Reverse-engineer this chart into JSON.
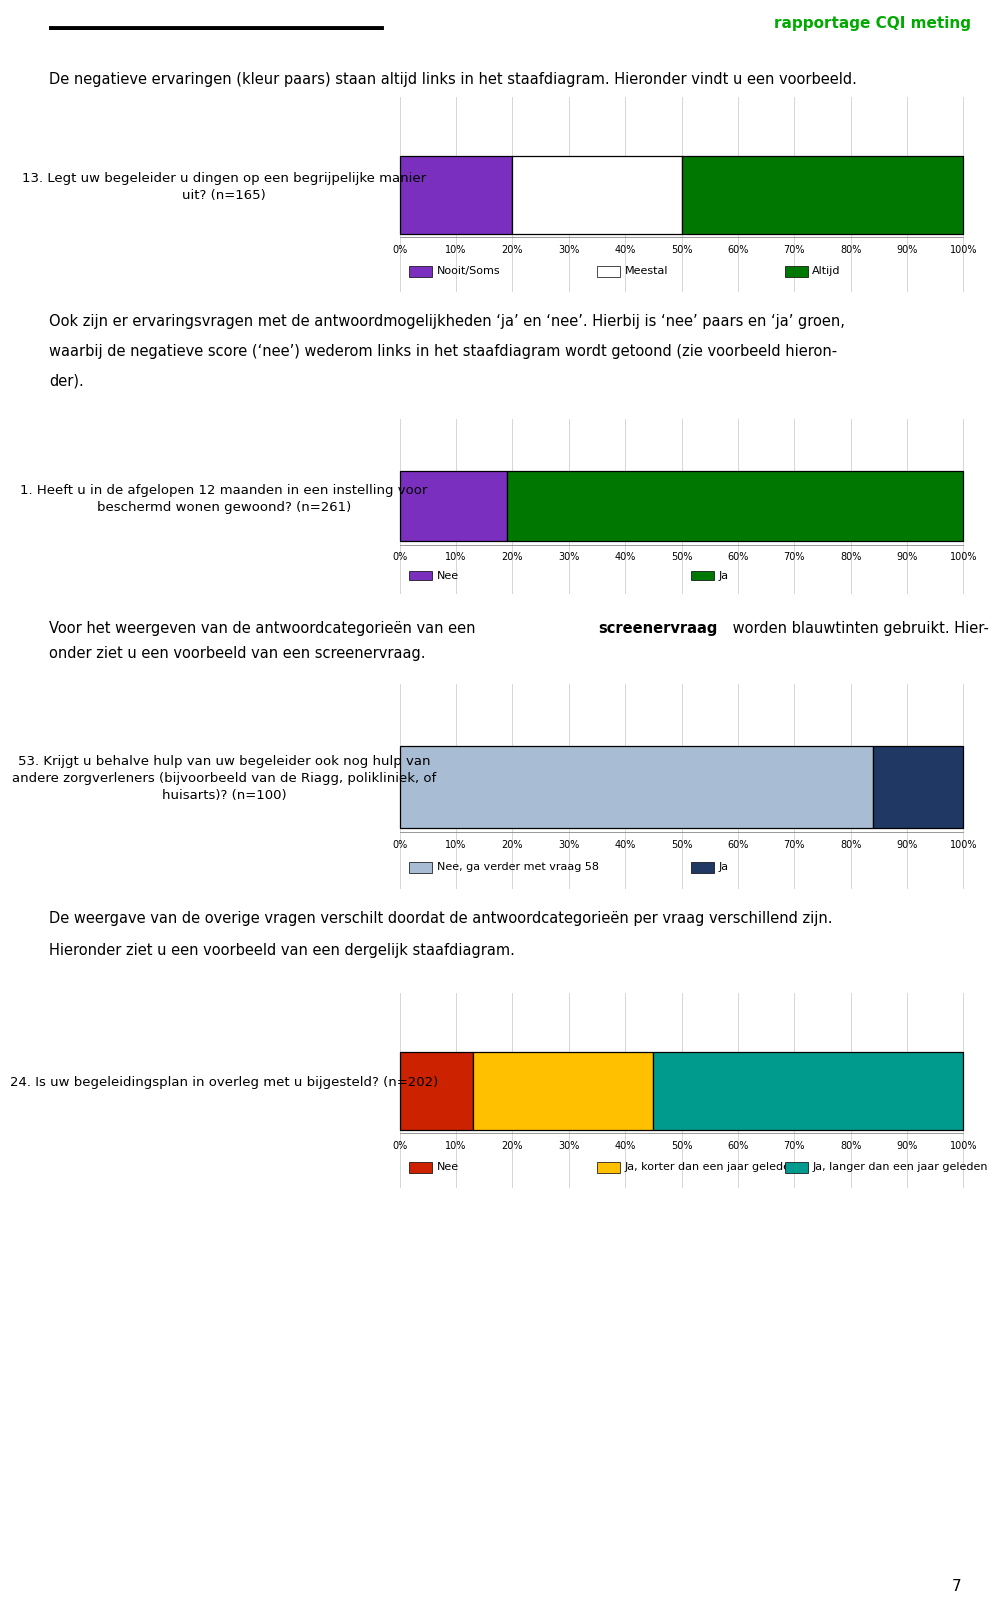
{
  "header_text": "rapportage CQI meting",
  "header_color": "#00AA00",
  "intro_text": "De negatieve ervaringen (kleur paars) staan altijd links in het staafdiagram. Hieronder vindt u een voorbeeld.",
  "chart1": {
    "question": "13. Legt uw begeleider u dingen op een begrijpelijke manier\nuit? (n=165)",
    "segments": [
      0.2,
      0.3,
      0.5
    ],
    "colors": [
      "#7B2FBE",
      "#FFFFFF",
      "#007700"
    ],
    "legend_labels": [
      "Nooit/Soms",
      "Meestal",
      "Altijd"
    ],
    "legend_edge_colors": [
      "black",
      "black",
      "black"
    ]
  },
  "text1_lines": [
    "Ook zijn er ervaringsvragen met de antwoordmogelijkheden ‘ja’ en ‘nee’. Hierbij is ‘nee’ paars en ‘ja’ groen,",
    "waarbij de negatieve score (‘nee’) wederom links in het staafdiagram wordt getoond (zie voorbeeld hieron-",
    "der)."
  ],
  "chart2": {
    "question": "1. Heeft u in de afgelopen 12 maanden in een instelling voor\nbeschermd wonen gewoond? (n=261)",
    "segments": [
      0.19,
      0.81
    ],
    "colors": [
      "#7B2FBE",
      "#007700"
    ],
    "legend_labels": [
      "Nee",
      "Ja"
    ],
    "legend_edge_colors": [
      "black",
      "black"
    ]
  },
  "text2_lines": [
    "Voor het weergeven van de antwoordcategorieën van een ",
    "screenervraag",
    " worden blauwtinten gebruikt. Hier-",
    "onder ziet u een voorbeeld van een screenervraag."
  ],
  "chart3": {
    "question": "53. Krijgt u behalve hulp van uw begeleider ook nog hulp van\nandere zorgverleners (bijvoorbeeld van de Riagg, polikliniek, of\nhuisarts)? (n=100)",
    "segments": [
      0.84,
      0.16
    ],
    "colors": [
      "#A8BDD4",
      "#1F3864"
    ],
    "legend_labels": [
      "Nee, ga verder met vraag 58",
      "Ja"
    ],
    "legend_edge_colors": [
      "black",
      "black"
    ]
  },
  "text3_lines": [
    "De weergave van de overige vragen verschilt doordat de antwoordcategorieën per vraag verschillend zijn.",
    "Hieronder ziet u een voorbeeld van een dergelijk staafdiagram."
  ],
  "chart4": {
    "question": "24. Is uw begeleidingsplan in overleg met u bijgesteld? (n=202)",
    "segments": [
      0.13,
      0.32,
      0.55
    ],
    "colors": [
      "#CC2200",
      "#FFC000",
      "#009B8D"
    ],
    "legend_labels": [
      "Nee",
      "Ja, korter dan een jaar geleden",
      "Ja, langer dan een jaar geleden"
    ],
    "legend_edge_colors": [
      "black",
      "black",
      "black"
    ]
  },
  "page_number": "7",
  "axis_ticks": [
    "0%",
    "10%",
    "20%",
    "30%",
    "40%",
    "50%",
    "60%",
    "70%",
    "80%",
    "90%",
    "100%"
  ],
  "axis_values": [
    0.0,
    0.1,
    0.2,
    0.3,
    0.4,
    0.5,
    0.6,
    0.7,
    0.8,
    0.9,
    1.0
  ]
}
